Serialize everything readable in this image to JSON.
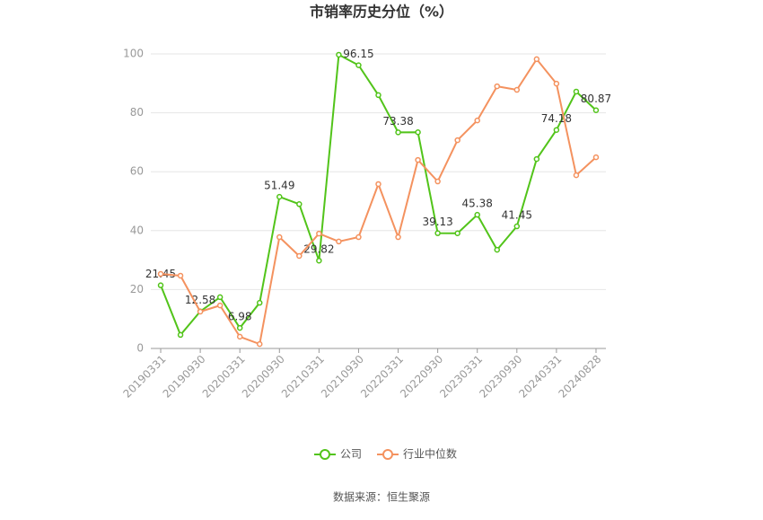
{
  "chart_data": {
    "type": "line",
    "title": "市销率历史分位（%）",
    "source": "数据来源：恒生聚源",
    "categories": [
      "20190331",
      null,
      "20190930",
      null,
      "20200331",
      null,
      "20200930",
      null,
      "20210331",
      null,
      "20210930",
      null,
      "20220331",
      null,
      "20220930",
      null,
      "20230331",
      null,
      "20230930",
      null,
      "20240331",
      null,
      "20240828"
    ],
    "series": [
      {
        "name": "公司",
        "color": "#52c41a",
        "values": [
          21.45,
          4.6,
          12.58,
          17.4,
          6.98,
          15.5,
          51.49,
          49,
          29.82,
          99.7,
          96.15,
          86,
          73.38,
          73.4,
          39.13,
          39.1,
          45.38,
          33.5,
          41.45,
          64.3,
          74.18,
          87.2,
          80.87
        ]
      },
      {
        "name": "行业中位数",
        "color": "#f4925f",
        "values": [
          25.3,
          24.7,
          12.5,
          14.6,
          4,
          1.5,
          37.8,
          31.4,
          39,
          36.3,
          37.8,
          55.8,
          37.8,
          64,
          56.7,
          70.7,
          77.4,
          89,
          87.8,
          98.2,
          89.9,
          58.8,
          64.9
        ]
      }
    ],
    "ylim": [
      0,
      100
    ],
    "yticks": [
      0,
      20,
      40,
      60,
      80,
      100
    ],
    "grid": true,
    "legend": "bottom"
  }
}
